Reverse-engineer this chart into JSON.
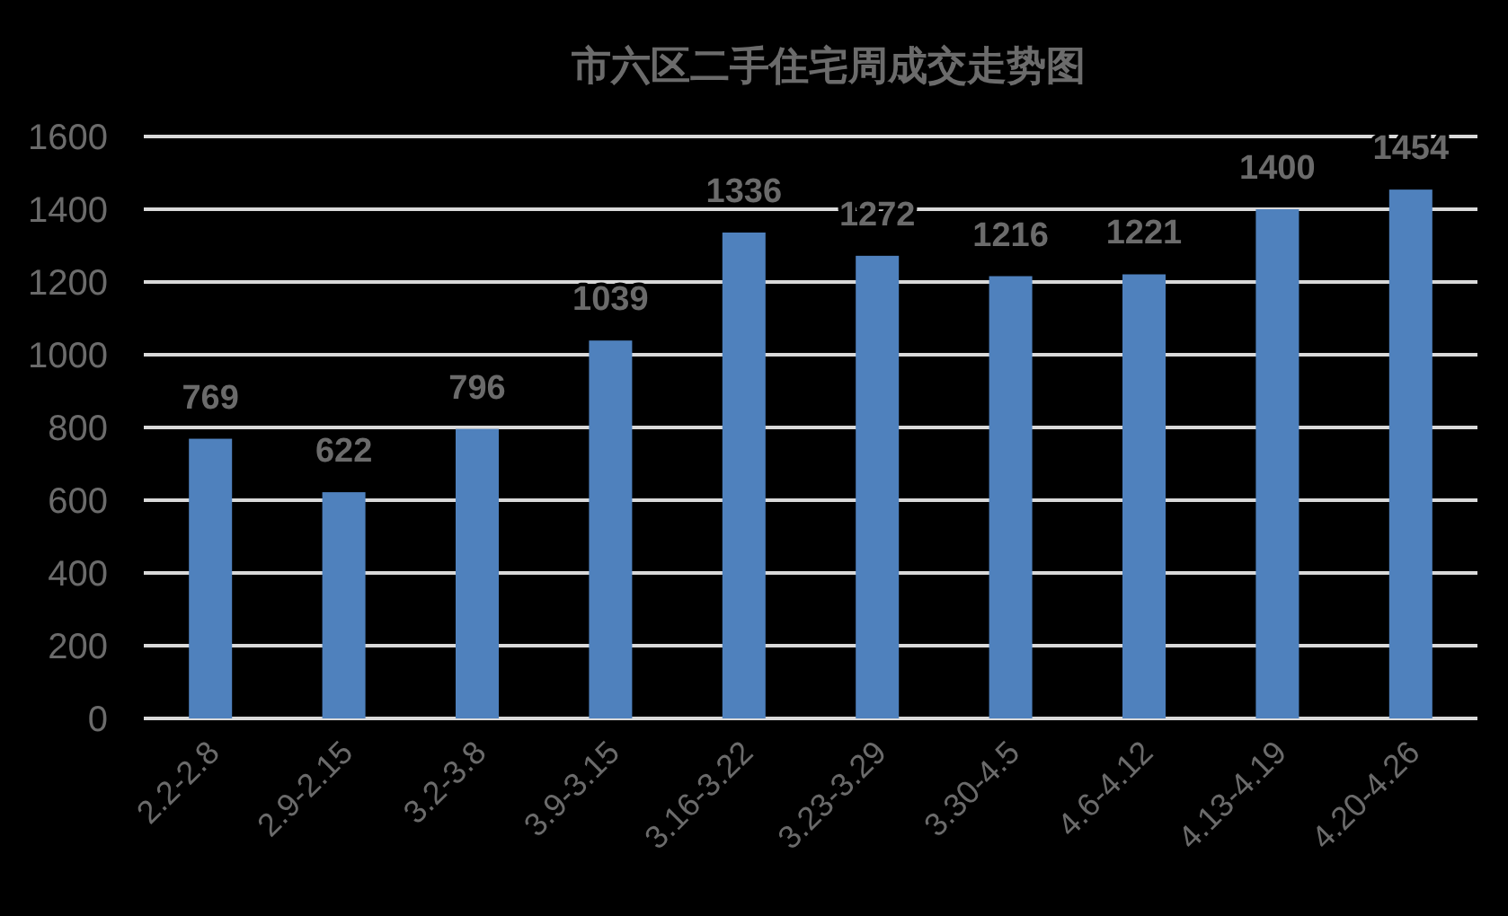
{
  "chart_data": {
    "type": "bar",
    "title": "市六区二手住宅周成交走势图",
    "categories": [
      "2.2-2.8",
      "2.9-2.15",
      "3.2-3.8",
      "3.9-3.15",
      "3.16-3.22",
      "3.23-3.29",
      "3.30-4.5",
      "4.6-4.12",
      "4.13-4.19",
      "4.20-4.26"
    ],
    "values": [
      769,
      622,
      796,
      1039,
      1336,
      1272,
      1216,
      1221,
      1400,
      1454
    ],
    "color": "#4f81bd",
    "ylim": [
      0,
      1600
    ],
    "yticks": [
      0,
      200,
      400,
      600,
      800,
      1000,
      1200,
      1400,
      1600
    ],
    "grid": "y",
    "data_labels": true
  }
}
